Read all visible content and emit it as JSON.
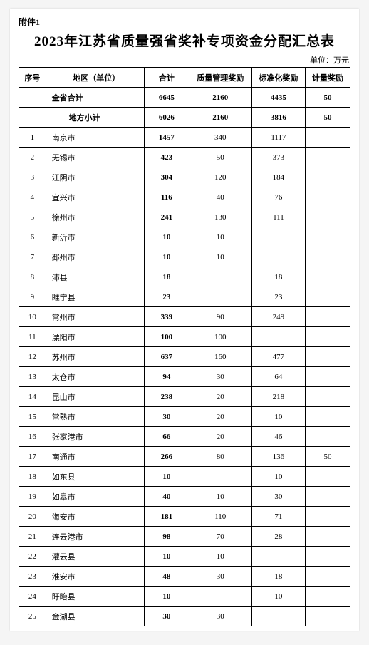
{
  "attachment_label": "附件1",
  "title": "2023年江苏省质量强省奖补专项资金分配汇总表",
  "unit_label": "单位：万元",
  "columns": {
    "index": "序号",
    "region": "地区（单位）",
    "total": "合计",
    "quality_award": "质量管理奖励",
    "standard_award": "标准化奖励",
    "measure_award": "计量奖励"
  },
  "summary": [
    {
      "region": "全省合计",
      "total": "6645",
      "quality": "2160",
      "standard": "4435",
      "measure": "50"
    },
    {
      "region": "地方小计",
      "total": "6026",
      "quality": "2160",
      "standard": "3816",
      "measure": "50",
      "indent": true
    }
  ],
  "rows": [
    {
      "idx": "1",
      "region": "南京市",
      "total": "1457",
      "quality": "340",
      "standard": "1117",
      "measure": ""
    },
    {
      "idx": "2",
      "region": "无锡市",
      "total": "423",
      "quality": "50",
      "standard": "373",
      "measure": ""
    },
    {
      "idx": "3",
      "region": "江阴市",
      "total": "304",
      "quality": "120",
      "standard": "184",
      "measure": ""
    },
    {
      "idx": "4",
      "region": "宜兴市",
      "total": "116",
      "quality": "40",
      "standard": "76",
      "measure": ""
    },
    {
      "idx": "5",
      "region": "徐州市",
      "total": "241",
      "quality": "130",
      "standard": "111",
      "measure": ""
    },
    {
      "idx": "6",
      "region": "新沂市",
      "total": "10",
      "quality": "10",
      "standard": "",
      "measure": ""
    },
    {
      "idx": "7",
      "region": "邳州市",
      "total": "10",
      "quality": "10",
      "standard": "",
      "measure": ""
    },
    {
      "idx": "8",
      "region": "沛县",
      "total": "18",
      "quality": "",
      "standard": "18",
      "measure": ""
    },
    {
      "idx": "9",
      "region": "睢宁县",
      "total": "23",
      "quality": "",
      "standard": "23",
      "measure": ""
    },
    {
      "idx": "10",
      "region": "常州市",
      "total": "339",
      "quality": "90",
      "standard": "249",
      "measure": ""
    },
    {
      "idx": "11",
      "region": "溧阳市",
      "total": "100",
      "quality": "100",
      "standard": "",
      "measure": ""
    },
    {
      "idx": "12",
      "region": "苏州市",
      "total": "637",
      "quality": "160",
      "standard": "477",
      "measure": ""
    },
    {
      "idx": "13",
      "region": "太仓市",
      "total": "94",
      "quality": "30",
      "standard": "64",
      "measure": ""
    },
    {
      "idx": "14",
      "region": "昆山市",
      "total": "238",
      "quality": "20",
      "standard": "218",
      "measure": ""
    },
    {
      "idx": "15",
      "region": "常熟市",
      "total": "30",
      "quality": "20",
      "standard": "10",
      "measure": ""
    },
    {
      "idx": "16",
      "region": "张家港市",
      "total": "66",
      "quality": "20",
      "standard": "46",
      "measure": ""
    },
    {
      "idx": "17",
      "region": "南通市",
      "total": "266",
      "quality": "80",
      "standard": "136",
      "measure": "50"
    },
    {
      "idx": "18",
      "region": "如东县",
      "total": "10",
      "quality": "",
      "standard": "10",
      "measure": ""
    },
    {
      "idx": "19",
      "region": "如皋市",
      "total": "40",
      "quality": "10",
      "standard": "30",
      "measure": ""
    },
    {
      "idx": "20",
      "region": "海安市",
      "total": "181",
      "quality": "110",
      "standard": "71",
      "measure": ""
    },
    {
      "idx": "21",
      "region": "连云港市",
      "total": "98",
      "quality": "70",
      "standard": "28",
      "measure": ""
    },
    {
      "idx": "22",
      "region": "灌云县",
      "total": "10",
      "quality": "10",
      "standard": "",
      "measure": ""
    },
    {
      "idx": "23",
      "region": "淮安市",
      "total": "48",
      "quality": "30",
      "standard": "18",
      "measure": ""
    },
    {
      "idx": "24",
      "region": "盱眙县",
      "total": "10",
      "quality": "",
      "standard": "10",
      "measure": ""
    },
    {
      "idx": "25",
      "region": "金湖县",
      "total": "30",
      "quality": "30",
      "standard": "",
      "measure": ""
    }
  ],
  "colors": {
    "text": "#000000",
    "border": "#000000",
    "background": "#ffffff"
  }
}
